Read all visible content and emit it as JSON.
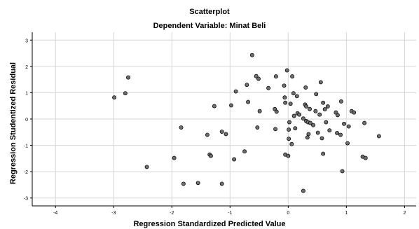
{
  "chart_data": {
    "type": "scatter",
    "title": "Scatterplot",
    "subtitle": "Dependent Variable: Minat Beli",
    "xlabel": "Regression Standardized Predicted Value",
    "ylabel": "Regression Studentized Residual",
    "xlim": [
      -4.4,
      2.2
    ],
    "ylim": [
      -3.3,
      3.3
    ],
    "xticks": [
      -4,
      -3,
      -2,
      -1,
      0,
      1,
      2
    ],
    "yticks": [
      3,
      2,
      1,
      0,
      -1,
      -2,
      -3
    ],
    "grid": true,
    "colors": {
      "point_fill": "#6e6e6e",
      "point_stroke": "#000000",
      "grid": "#d6d6d6",
      "axis": "#000000"
    },
    "points": [
      [
        -2.99,
        0.82
      ],
      [
        -2.8,
        0.98
      ],
      [
        -2.75,
        1.58
      ],
      [
        -2.43,
        -1.82
      ],
      [
        -1.96,
        -1.48
      ],
      [
        -1.84,
        -0.32
      ],
      [
        -1.8,
        -2.46
      ],
      [
        -1.55,
        -2.43
      ],
      [
        -1.39,
        -0.6
      ],
      [
        -1.35,
        -1.35
      ],
      [
        -1.33,
        -1.4
      ],
      [
        -1.27,
        0.49
      ],
      [
        -1.14,
        -0.48
      ],
      [
        -1.14,
        -2.46
      ],
      [
        -1.07,
        -0.57
      ],
      [
        -0.98,
        0.52
      ],
      [
        -0.93,
        -1.53
      ],
      [
        -0.9,
        1.05
      ],
      [
        -0.75,
        -1.23
      ],
      [
        -0.71,
        1.3
      ],
      [
        -0.69,
        0.65
      ],
      [
        -0.62,
        2.43
      ],
      [
        -0.55,
        1.63
      ],
      [
        -0.53,
        -0.32
      ],
      [
        -0.51,
        1.53
      ],
      [
        -0.49,
        0.3
      ],
      [
        -0.34,
        1.18
      ],
      [
        -0.23,
        0.38
      ],
      [
        -0.22,
        -0.38
      ],
      [
        -0.21,
        1.62
      ],
      [
        -0.2,
        0.28
      ],
      [
        -0.07,
        1.27
      ],
      [
        -0.06,
        0.82
      ],
      [
        -0.05,
        0.62
      ],
      [
        -0.05,
        -1.35
      ],
      [
        -0.02,
        1.85
      ],
      [
        0.0,
        -1.4
      ],
      [
        0.01,
        -0.4
      ],
      [
        0.01,
        -0.75
      ],
      [
        0.02,
        -0.12
      ],
      [
        0.04,
        0.58
      ],
      [
        0.06,
        -0.95
      ],
      [
        0.07,
        1.62
      ],
      [
        0.09,
        0.98
      ],
      [
        0.1,
        0.12
      ],
      [
        0.12,
        -0.35
      ],
      [
        0.15,
        0.87
      ],
      [
        0.16,
        0.22
      ],
      [
        0.19,
        0.17
      ],
      [
        0.26,
        0.02
      ],
      [
        0.26,
        -2.73
      ],
      [
        0.29,
        0.55
      ],
      [
        0.3,
        1.2
      ],
      [
        0.31,
        -0.08
      ],
      [
        0.31,
        0.48
      ],
      [
        0.33,
        -0.7
      ],
      [
        0.34,
        -0.12
      ],
      [
        0.35,
        -0.57
      ],
      [
        0.37,
        0.38
      ],
      [
        0.38,
        -0.15
      ],
      [
        0.43,
        -0.23
      ],
      [
        0.47,
        0.3
      ],
      [
        0.48,
        0.95
      ],
      [
        0.51,
        -0.52
      ],
      [
        0.54,
        0.17
      ],
      [
        0.56,
        1.4
      ],
      [
        0.58,
        -0.73
      ],
      [
        0.6,
        -1.32
      ],
      [
        0.6,
        0.62
      ],
      [
        0.63,
        0.37
      ],
      [
        0.65,
        -0.12
      ],
      [
        0.68,
        0.48
      ],
      [
        0.71,
        -0.43
      ],
      [
        0.82,
        0.25
      ],
      [
        0.84,
        -0.53
      ],
      [
        0.85,
        0.15
      ],
      [
        0.9,
        -0.6
      ],
      [
        0.91,
        0.67
      ],
      [
        0.93,
        -1.98
      ],
      [
        0.96,
        -0.18
      ],
      [
        1.02,
        -0.92
      ],
      [
        1.04,
        -0.28
      ],
      [
        1.09,
        0.3
      ],
      [
        1.13,
        0.25
      ],
      [
        1.28,
        -1.43
      ],
      [
        1.31,
        -0.15
      ],
      [
        1.33,
        -1.48
      ],
      [
        1.56,
        -0.65
      ]
    ]
  }
}
